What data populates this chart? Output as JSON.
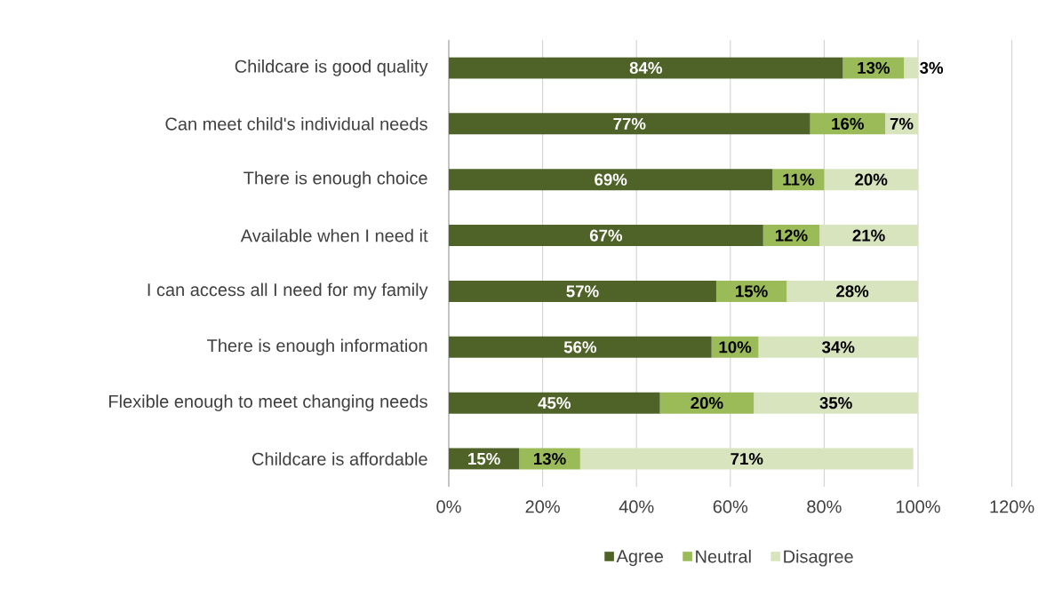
{
  "chart_data": {
    "type": "bar",
    "orientation": "horizontal",
    "stacked": true,
    "categories": [
      "Childcare is good quality",
      "Can meet child's individual needs",
      "There is enough choice",
      "Available when I need it",
      "I can access all I need for my family",
      "There is enough information",
      "Flexible enough to meet changing needs",
      "Childcare is affordable"
    ],
    "series": [
      {
        "name": "Agree",
        "color": "#4f6228",
        "values": [
          84,
          77,
          69,
          67,
          57,
          56,
          45,
          15
        ],
        "value_labels": [
          "84%",
          "77%",
          "69%",
          "67%",
          "57%",
          "56%",
          "45%",
          "15%"
        ]
      },
      {
        "name": "Neutral",
        "color": "#9bbb59",
        "values": [
          13,
          16,
          11,
          12,
          15,
          10,
          20,
          13
        ],
        "value_labels": [
          "13%",
          "16%",
          "11%",
          "12%",
          "15%",
          "10%",
          "20%",
          "13%"
        ]
      },
      {
        "name": "Disagree",
        "color": "#d7e4bd",
        "values": [
          3,
          7,
          20,
          21,
          28,
          34,
          35,
          71
        ],
        "value_labels": [
          "3%",
          "7%",
          "20%",
          "21%",
          "28%",
          "34%",
          "35%",
          "71%"
        ]
      }
    ],
    "xlim": [
      0,
      120
    ],
    "xticks": [
      {
        "value": 0,
        "label": "0%"
      },
      {
        "value": 20,
        "label": "20%"
      },
      {
        "value": 40,
        "label": "40%"
      },
      {
        "value": 60,
        "label": "60%"
      },
      {
        "value": 80,
        "label": "80%"
      },
      {
        "value": 100,
        "label": "100%"
      },
      {
        "value": 120,
        "label": "120%"
      }
    ],
    "grid": "x",
    "legend": "bottom"
  }
}
